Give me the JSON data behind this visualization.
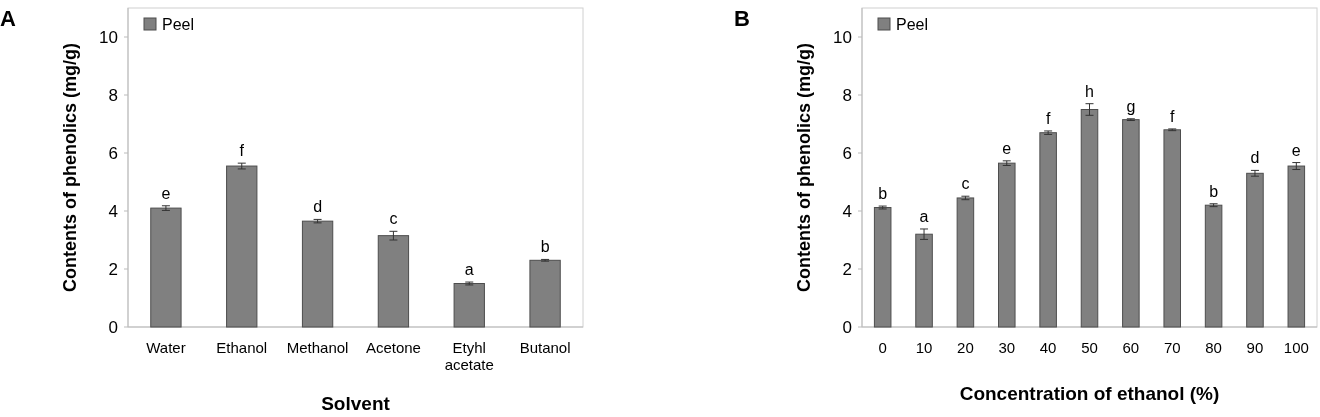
{
  "chart_data": [
    {
      "type": "bar",
      "title": "A",
      "xlabel": "Solvent",
      "ylabel": "Contents of phenolics (mg/g)",
      "categories": [
        "Water",
        "Ethanol",
        "Methanol",
        "Acetone",
        "Etyhl acetate",
        "Butanol"
      ],
      "series": [
        {
          "name": "Peel",
          "color": "#808080",
          "values": [
            4.1,
            5.55,
            3.65,
            3.15,
            1.5,
            2.3
          ],
          "errors": [
            0.08,
            0.1,
            0.06,
            0.15,
            0.05,
            0.03
          ]
        }
      ],
      "ylim": [
        0,
        11
      ],
      "yticks": [
        0,
        2,
        4,
        6,
        8,
        10
      ],
      "grid": false,
      "legend": "top left",
      "annotations": [
        {
          "text": "e",
          "x": "Water",
          "y": 4.1
        },
        {
          "text": "f",
          "x": "Ethanol",
          "y": 5.55
        },
        {
          "text": "d",
          "x": "Methanol",
          "y": 3.65
        },
        {
          "text": "c",
          "x": "Acetone",
          "y": 3.15
        },
        {
          "text": "a",
          "x": "Etyhl acetate",
          "y": 1.5
        },
        {
          "text": "b",
          "x": "Butanol",
          "y": 2.3
        }
      ]
    },
    {
      "type": "bar",
      "title": "B",
      "xlabel": "Concentration of ethanol (%)",
      "ylabel": "Contents of phenolics (mg/g)",
      "categories": [
        "0",
        "10",
        "20",
        "30",
        "40",
        "50",
        "60",
        "70",
        "80",
        "90",
        "100"
      ],
      "series": [
        {
          "name": "Peel",
          "color": "#808080",
          "values": [
            4.12,
            3.2,
            4.45,
            5.65,
            6.7,
            7.5,
            7.15,
            6.8,
            4.2,
            5.3,
            5.55
          ],
          "errors": [
            0.05,
            0.18,
            0.06,
            0.08,
            0.06,
            0.2,
            0.03,
            0.03,
            0.05,
            0.1,
            0.12
          ]
        }
      ],
      "ylim": [
        0,
        11
      ],
      "yticks": [
        0,
        2,
        4,
        6,
        8,
        10
      ],
      "grid": false,
      "legend": "top left",
      "annotations": [
        {
          "text": "b",
          "x": "0",
          "y": 4.12
        },
        {
          "text": "a",
          "x": "10",
          "y": 3.2
        },
        {
          "text": "c",
          "x": "20",
          "y": 4.45
        },
        {
          "text": "e",
          "x": "30",
          "y": 5.65
        },
        {
          "text": "f",
          "x": "40",
          "y": 6.7
        },
        {
          "text": "h",
          "x": "50",
          "y": 7.5
        },
        {
          "text": "g",
          "x": "60",
          "y": 7.15
        },
        {
          "text": "f",
          "x": "70",
          "y": 6.8
        },
        {
          "text": "b",
          "x": "80",
          "y": 4.2
        },
        {
          "text": "d",
          "x": "90",
          "y": 5.3
        },
        {
          "text": "e",
          "x": "100",
          "y": 5.55
        }
      ]
    }
  ]
}
